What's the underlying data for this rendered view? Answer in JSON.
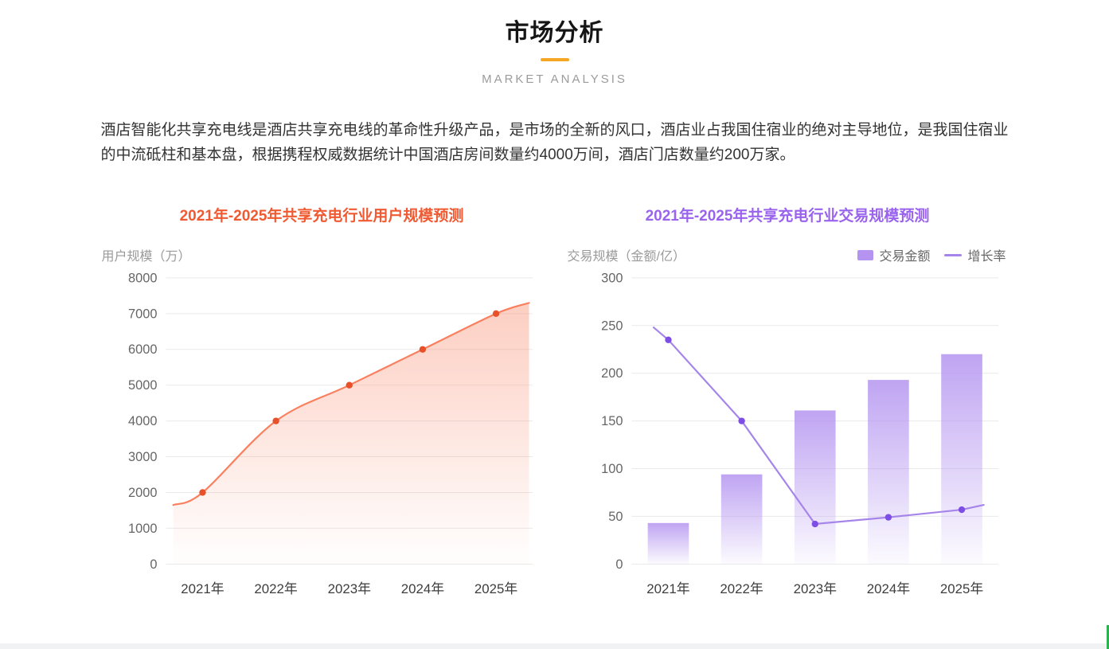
{
  "page": {
    "title": "市场分析",
    "subtitle": "MARKET ANALYSIS",
    "accent_color": "#f5a623",
    "intro": "酒店智能化共享充电线是酒店共享充电线的革命性升级产品，是市场的全新的风口，酒店业占我国住宿业的绝对主导地位，是我国住宿业的中流砥柱和基本盘，根据携程权威数据统计中国酒店房间数量约4000万间，酒店门店数量约200万家。"
  },
  "chart_data": [
    {
      "type": "area",
      "title": "2021年-2025年共享充电行业用户规模预测",
      "title_color": "#f05a32",
      "ylabel": "用户规模（万）",
      "categories": [
        "2021年",
        "2022年",
        "2023年",
        "2024年",
        "2025年"
      ],
      "values": [
        2000,
        4000,
        5000,
        6000,
        7000
      ],
      "edge_values": {
        "start": 1650,
        "end": 7300
      },
      "ylim": [
        0,
        8000
      ],
      "ytick_step": 1000,
      "grid": true,
      "smooth": true,
      "line_color": "#f97f5e",
      "point_color": "#e8502a",
      "area_color": "#f97f5e",
      "legend_position": "none"
    },
    {
      "type": "bar-line",
      "title": "2021年-2025年共享充电行业交易规模预测",
      "title_color": "#9a63ee",
      "ylabel": "交易规模（金额/亿）",
      "categories": [
        "2021年",
        "2022年",
        "2023年",
        "2024年",
        "2025年"
      ],
      "series": [
        {
          "name": "交易金额",
          "type": "bar",
          "values": [
            43,
            94,
            161,
            193,
            220
          ],
          "color": "#b494f0"
        },
        {
          "name": "增长率",
          "type": "line",
          "values": [
            235,
            150,
            42,
            49,
            57
          ],
          "color": "#a685ea",
          "point_color": "#7d4ee4",
          "edge_values": {
            "start": 248,
            "end": 62
          }
        }
      ],
      "ylim": [
        0,
        300
      ],
      "ytick_step": 50,
      "grid": true,
      "smooth": false,
      "legend_position": "top-right"
    }
  ]
}
